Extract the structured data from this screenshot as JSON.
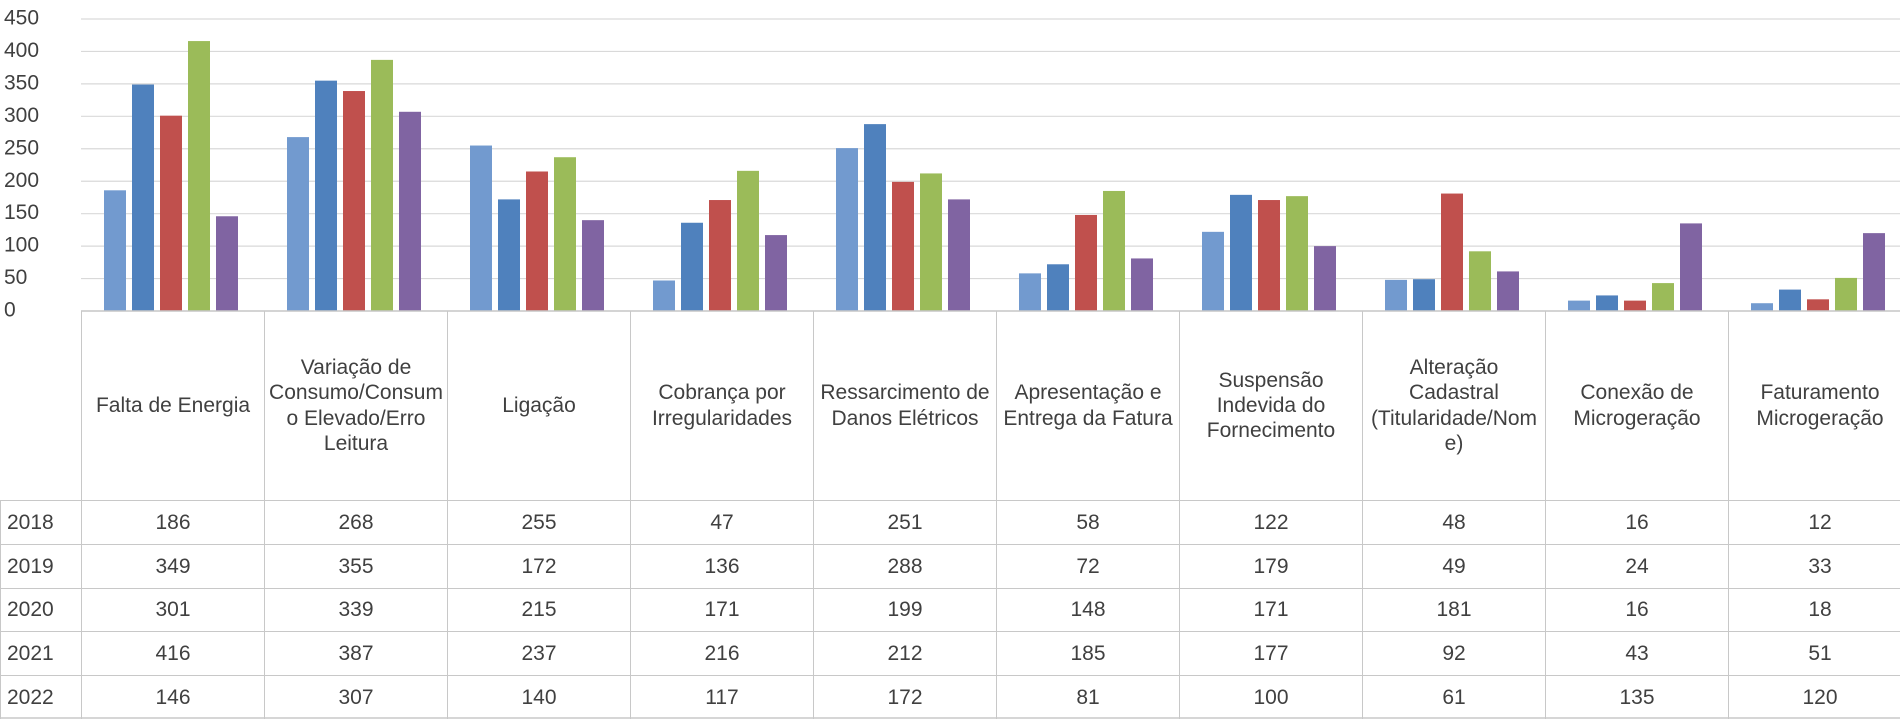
{
  "chart_data": {
    "type": "bar",
    "categories": [
      "Falta de Energia",
      "Variação de Consumo/Consumo Elevado/Erro Leitura",
      "Ligação",
      "Cobrança por Irregularidades",
      "Ressarcimento de Danos Elétricos",
      "Apresentação e Entrega da Fatura",
      "Suspensão Indevida do Fornecimento",
      "Alteração Cadastral (Titularidade/Nome)",
      "Conexão de Microgeração",
      "Faturamento Microgeração"
    ],
    "series": [
      {
        "name": "2018",
        "color": "#729acf",
        "values": [
          186,
          268,
          255,
          47,
          251,
          58,
          122,
          48,
          16,
          12
        ]
      },
      {
        "name": "2019",
        "color": "#4f81bd",
        "values": [
          349,
          355,
          172,
          136,
          288,
          72,
          179,
          49,
          24,
          33
        ]
      },
      {
        "name": "2020",
        "color": "#c0504d",
        "values": [
          301,
          339,
          215,
          171,
          199,
          148,
          171,
          181,
          16,
          18
        ]
      },
      {
        "name": "2021",
        "color": "#9bbb59",
        "values": [
          416,
          387,
          237,
          216,
          212,
          185,
          177,
          92,
          43,
          51
        ]
      },
      {
        "name": "2022",
        "color": "#8064a2",
        "values": [
          146,
          307,
          140,
          117,
          172,
          81,
          100,
          61,
          135,
          120
        ]
      }
    ],
    "ylim": [
      0,
      450
    ],
    "yticks": [
      0,
      50,
      100,
      150,
      200,
      250,
      300,
      350,
      400,
      450
    ],
    "grid": true
  }
}
